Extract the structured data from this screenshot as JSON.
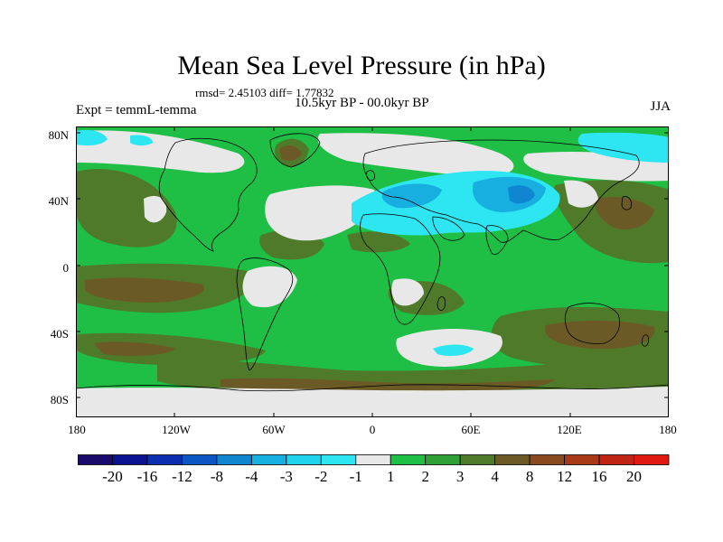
{
  "title": "Mean Sea Level Pressure (in hPa)",
  "stats": "rmsd= 2.45103 diff= 1.77832",
  "period": "10.5kyr BP - 00.0kyr BP",
  "experiment": "Expt = temmL-temma",
  "season": "JJA",
  "lat_labels": [
    "80N",
    "40N",
    "0",
    "40S",
    "80S"
  ],
  "lon_labels": [
    "180",
    "120W",
    "60W",
    "0",
    "60E",
    "120E",
    "180"
  ],
  "colorbar": {
    "labels": [
      "-20",
      "-16",
      "-12",
      "-8",
      "-4",
      "-3",
      "-2",
      "-1",
      "1",
      "2",
      "3",
      "4",
      "8",
      "12",
      "16",
      "20"
    ],
    "colors": [
      "#1a0a6b",
      "#0a128f",
      "#0b2fae",
      "#0b55c4",
      "#1086d0",
      "#17aee0",
      "#20d2ea",
      "#2ee6f2",
      "#e8e8e8",
      "#1fbf46",
      "#2ea035",
      "#4e7a2a",
      "#6b5a25",
      "#8a4a1f",
      "#a83a18",
      "#c02414",
      "#e01a10"
    ]
  },
  "map_fields": {
    "ocean": "#1fbf46",
    "positive_mid": "#4e7a2a",
    "positive_strong": "#6b5a25",
    "near_zero": "#e8e8e8",
    "negative_weak": "#2ee6f2",
    "negative_mid": "#17aee0",
    "negative_strong": "#1086d0",
    "coastline": "#000000"
  }
}
